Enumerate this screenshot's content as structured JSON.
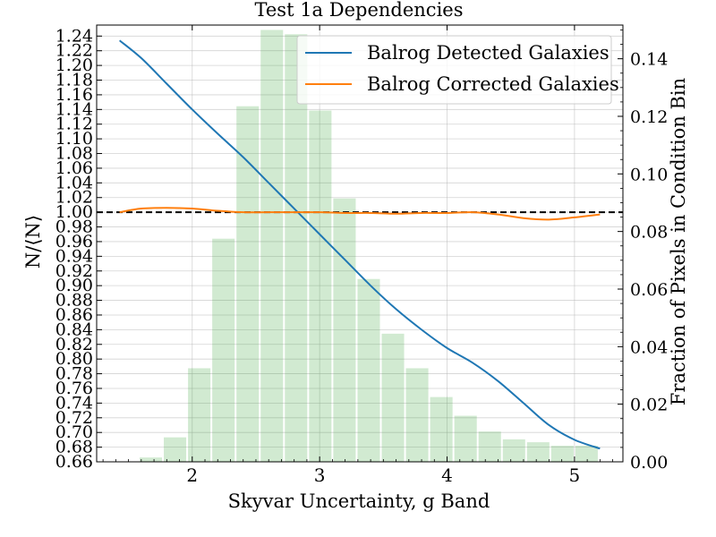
{
  "chart_data": {
    "type": "bar+line",
    "title": "Test 1a Dependencies",
    "xlabel": "Skyvar Uncertainty, g Band",
    "ylabel_left": "N/⟨N⟩",
    "ylabel_right": "Fraction of Pixels in Condition Bin",
    "xlim": [
      1.25,
      5.38
    ],
    "ylim_left": [
      0.66,
      1.255
    ],
    "ylim_right": [
      0,
      0.1517
    ],
    "x_ticks": [
      2,
      3,
      4,
      5
    ],
    "x_tick_labels": [
      "2",
      "3",
      "4",
      "5"
    ],
    "y_left_ticks": [
      0.66,
      0.68,
      0.7,
      0.72,
      0.74,
      0.76,
      0.78,
      0.8,
      0.82,
      0.84,
      0.86,
      0.88,
      0.9,
      0.92,
      0.94,
      0.96,
      0.98,
      1.0,
      1.02,
      1.04,
      1.06,
      1.08,
      1.1,
      1.12,
      1.14,
      1.16,
      1.18,
      1.2,
      1.22,
      1.24
    ],
    "y_left_tick_labels": [
      "0.66",
      "0.68",
      "0.70",
      "0.72",
      "0.74",
      "0.76",
      "0.78",
      "0.80",
      "0.82",
      "0.84",
      "0.86",
      "0.88",
      "0.90",
      "0.92",
      "0.94",
      "0.96",
      "0.98",
      "1.00",
      "1.02",
      "1.04",
      "1.06",
      "1.08",
      "1.10",
      "1.12",
      "1.14",
      "1.16",
      "1.18",
      "1.20",
      "1.22",
      "1.24"
    ],
    "y_right_ticks": [
      0.0,
      0.02,
      0.04,
      0.06,
      0.08,
      0.1,
      0.12,
      0.14
    ],
    "y_right_tick_labels": [
      "0.00",
      "0.02",
      "0.04",
      "0.06",
      "0.08",
      "0.10",
      "0.12",
      "0.14"
    ],
    "grid": true,
    "legend_position": "top-right",
    "reference_line": {
      "y": 1.0,
      "style": "dashed",
      "color": "#000000"
    },
    "histogram": {
      "color": "#2ca02c",
      "opacity": 0.22,
      "bin_edges": [
        1.58,
        1.77,
        1.96,
        2.15,
        2.34,
        2.53,
        2.72,
        2.91,
        3.1,
        3.29,
        3.48,
        3.67,
        3.86,
        4.05,
        4.24,
        4.43,
        4.62,
        4.81,
        5.0,
        5.19
      ],
      "values": [
        0.0015,
        0.0085,
        0.0325,
        0.0775,
        0.1235,
        0.15,
        0.1485,
        0.122,
        0.0915,
        0.0635,
        0.0445,
        0.0325,
        0.0225,
        0.016,
        0.0105,
        0.0078,
        0.0068,
        0.0056,
        0.0056
      ]
    },
    "series": [
      {
        "name": "Balrog Detected Galaxies",
        "color": "#1f77b4",
        "x": [
          1.43,
          1.6,
          1.8,
          2.0,
          2.2,
          2.4,
          2.6,
          2.8,
          3.0,
          3.2,
          3.4,
          3.6,
          3.8,
          4.0,
          4.2,
          4.4,
          4.6,
          4.8,
          5.0,
          5.2
        ],
        "y": [
          1.234,
          1.21,
          1.175,
          1.14,
          1.107,
          1.075,
          1.04,
          1.005,
          0.97,
          0.935,
          0.9,
          0.868,
          0.84,
          0.815,
          0.795,
          0.77,
          0.74,
          0.71,
          0.69,
          0.678
        ]
      },
      {
        "name": "Balrog Corrected Galaxies",
        "color": "#ff7f0e",
        "x": [
          1.43,
          1.6,
          1.8,
          2.0,
          2.2,
          2.4,
          2.6,
          2.8,
          3.0,
          3.2,
          3.4,
          3.6,
          3.8,
          4.0,
          4.2,
          4.4,
          4.6,
          4.8,
          5.0,
          5.2
        ],
        "y": [
          1.0,
          1.005,
          1.006,
          1.005,
          1.002,
          1.0,
          1.0,
          1.0,
          1.0,
          0.999,
          0.999,
          0.998,
          0.999,
          0.999,
          1.0,
          0.997,
          0.992,
          0.99,
          0.993,
          0.997
        ]
      }
    ]
  }
}
